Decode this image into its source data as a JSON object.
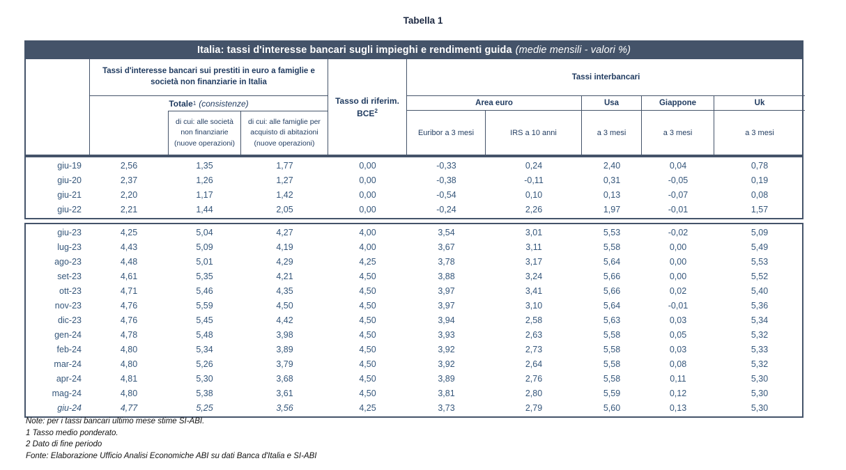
{
  "page_title": "Tabella 1",
  "title_bar": {
    "main": "Italia: tassi d'interesse bancari sugli impieghi e rendimenti guida",
    "sub": "(medie mensili - valori %)"
  },
  "header": {
    "loans_group": "Tassi d'interesse bancari sui prestiti in euro a famiglie e società non finanziarie in Italia",
    "totale_label": "Totale",
    "totale_sup": "1",
    "totale_note": "(consistenze)",
    "subcol_societa": "di cui: alle società non finanziarie (nuove operazioni)",
    "subcol_famiglie": "di cui: alle famiglie per acquisto di abitazioni (nuove operazioni)",
    "bce_line1": "Tasso di riferim.",
    "bce_line2": "BCE",
    "bce_sup": "2",
    "interbank_group": "Tassi interbancari",
    "area_euro": "Area euro",
    "usa": "Usa",
    "giappone": "Giappone",
    "uk": "Uk",
    "euribor": "Euribor a 3 mesi",
    "irs": "IRS a 10 anni",
    "a3_usa": "a 3 mesi",
    "a3_giappone": "a 3 mesi",
    "a3_uk": "a 3 mesi"
  },
  "table": {
    "block_annual": [
      {
        "cells": [
          "giu-19",
          "2,56",
          "1,35",
          "1,77",
          "0,00",
          "-0,33",
          "0,24",
          "2,40",
          "0,04",
          "0,78"
        ]
      },
      {
        "cells": [
          "giu-20",
          "2,37",
          "1,26",
          "1,27",
          "0,00",
          "-0,38",
          "-0,11",
          "0,31",
          "-0,05",
          "0,19"
        ]
      },
      {
        "cells": [
          "giu-21",
          "2,20",
          "1,17",
          "1,42",
          "0,00",
          "-0,54",
          "0,10",
          "0,13",
          "-0,07",
          "0,08"
        ]
      },
      {
        "cells": [
          "giu-22",
          "2,21",
          "1,44",
          "2,05",
          "0,00",
          "-0,24",
          "2,26",
          "1,97",
          "-0,01",
          "1,57"
        ]
      }
    ],
    "block_monthly": [
      {
        "cells": [
          "giu-23",
          "4,25",
          "5,04",
          "4,27",
          "4,00",
          "3,54",
          "3,01",
          "5,53",
          "-0,02",
          "5,09"
        ]
      },
      {
        "cells": [
          "lug-23",
          "4,43",
          "5,09",
          "4,19",
          "4,00",
          "3,67",
          "3,11",
          "5,58",
          "0,00",
          "5,49"
        ]
      },
      {
        "cells": [
          "ago-23",
          "4,48",
          "5,01",
          "4,29",
          "4,25",
          "3,78",
          "3,17",
          "5,64",
          "0,00",
          "5,53"
        ]
      },
      {
        "cells": [
          "set-23",
          "4,61",
          "5,35",
          "4,21",
          "4,50",
          "3,88",
          "3,24",
          "5,66",
          "0,00",
          "5,52"
        ]
      },
      {
        "cells": [
          "ott-23",
          "4,71",
          "5,46",
          "4,35",
          "4,50",
          "3,97",
          "3,41",
          "5,66",
          "0,02",
          "5,40"
        ]
      },
      {
        "cells": [
          "nov-23",
          "4,76",
          "5,59",
          "4,50",
          "4,50",
          "3,97",
          "3,10",
          "5,64",
          "-0,01",
          "5,36"
        ]
      },
      {
        "cells": [
          "dic-23",
          "4,76",
          "5,45",
          "4,42",
          "4,50",
          "3,94",
          "2,58",
          "5,63",
          "0,03",
          "5,34"
        ]
      },
      {
        "cells": [
          "gen-24",
          "4,78",
          "5,48",
          "3,98",
          "4,50",
          "3,93",
          "2,63",
          "5,58",
          "0,05",
          "5,32"
        ]
      },
      {
        "cells": [
          "feb-24",
          "4,80",
          "5,34",
          "3,89",
          "4,50",
          "3,92",
          "2,73",
          "5,58",
          "0,03",
          "5,33"
        ]
      },
      {
        "cells": [
          "mar-24",
          "4,80",
          "5,26",
          "3,79",
          "4,50",
          "3,92",
          "2,64",
          "5,58",
          "0,08",
          "5,32"
        ]
      },
      {
        "cells": [
          "apr-24",
          "4,81",
          "5,30",
          "3,68",
          "4,50",
          "3,89",
          "2,76",
          "5,58",
          "0,11",
          "5,30"
        ]
      },
      {
        "cells": [
          "mag-24",
          "4,80",
          "5,38",
          "3,61",
          "4,50",
          "3,81",
          "2,80",
          "5,59",
          "0,12",
          "5,30"
        ]
      },
      {
        "cells": [
          "giu-24",
          "4,77",
          "5,25",
          "3,56",
          "4,25",
          "3,73",
          "2,79",
          "5,60",
          "0,13",
          "5,30"
        ],
        "italic_cols": 4
      }
    ]
  },
  "notes": [
    "Note: per i tassi bancari ultimo mese stime SI-ABI.",
    "1 Tasso medio ponderato.",
    "2 Dato di fine periodo",
    "Fonte: Elaborazione Ufficio Analisi Economiche ABI su dati Banca d'Italia e SI-ABI"
  ]
}
